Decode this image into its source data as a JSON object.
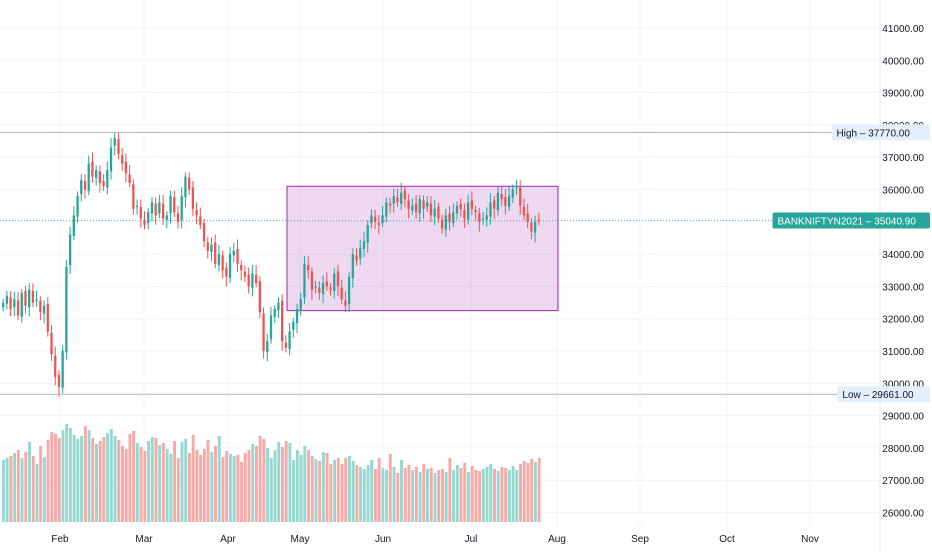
{
  "chart_data": {
    "type": "candlestick",
    "title": "",
    "price_axis": {
      "range": [
        25600,
        41700
      ],
      "ticks": [
        "41000.00",
        "40000.00",
        "39000.00",
        "38000.00",
        "37000.00",
        "36000.00",
        "35000.00",
        "34000.00",
        "33000.00",
        "32000.00",
        "31000.00",
        "30000.00",
        "29000.00",
        "28000.00",
        "27000.00",
        "26000.00"
      ]
    },
    "time_axis": {
      "labels": [
        "Feb",
        "Mar",
        "Apr",
        "May",
        "Jun",
        "Jul",
        "Aug",
        "Sep",
        "Oct",
        "Nov"
      ]
    },
    "price_lines": {
      "high": {
        "label": "High",
        "value": "37770.00",
        "price": 37770
      },
      "low": {
        "label": "Low",
        "value": "29661.00",
        "price": 29661
      },
      "last": {
        "label": "BANKNIFTYN2021",
        "value": "35040.90",
        "price": 35040.9
      }
    },
    "consolidation_box": {
      "date_from": "late Apr",
      "date_to": "end Jul",
      "price_from": 32250,
      "price_to": 36100
    },
    "close_series": [
      32500,
      32700,
      32300,
      32600,
      32100,
      32800,
      32400,
      32900,
      32500,
      32600,
      32200,
      32400,
      31600,
      30900,
      30200,
      29900,
      31000,
      33600,
      34600,
      35200,
      35800,
      36300,
      36000,
      36800,
      36400,
      36600,
      36200,
      36100,
      36600,
      37300,
      37600,
      37100,
      36800,
      36500,
      36200,
      35400,
      35500,
      35100,
      34900,
      35300,
      35600,
      35200,
      35600,
      35100,
      35200,
      35800,
      35300,
      35000,
      35800,
      36400,
      36000,
      35400,
      35200,
      34900,
      34400,
      34100,
      34300,
      33700,
      34000,
      33500,
      33300,
      34000,
      34100,
      33700,
      33500,
      33300,
      33000,
      33400,
      33100,
      32200,
      31000,
      31300,
      32100,
      32300,
      32500,
      31300,
      31100,
      31600,
      31900,
      32300,
      32600,
      33700,
      33500,
      32900,
      33000,
      32800,
      33100,
      33000,
      32900,
      33400,
      33000,
      32600,
      32400,
      33300,
      34000,
      33800,
      34200,
      34400,
      34900,
      35200,
      35000,
      34900,
      35200,
      35600,
      35500,
      35800,
      35600,
      35900,
      35700,
      35400,
      35500,
      35300,
      35700,
      35400,
      35600,
      35200,
      35400,
      35100,
      34800,
      35200,
      35000,
      35300,
      35500,
      35400,
      35100,
      35600,
      35400,
      35300,
      35000,
      35100,
      35200,
      35600,
      35400,
      35900,
      35700,
      35500,
      35800,
      36000,
      36100,
      35500,
      35200,
      35000,
      34700,
      35000,
      35040.9
    ],
    "volume_series": [
      62,
      64,
      66,
      69,
      72,
      64,
      70,
      80,
      66,
      58,
      76,
      65,
      82,
      90,
      88,
      84,
      92,
      98,
      94,
      87,
      83,
      86,
      96,
      92,
      84,
      78,
      81,
      85,
      89,
      93,
      86,
      82,
      76,
      73,
      88,
      91,
      79,
      75,
      71,
      81,
      85,
      84,
      77,
      79,
      73,
      68,
      81,
      64,
      80,
      83,
      69,
      87,
      72,
      67,
      73,
      82,
      70,
      76,
      86,
      65,
      71,
      68,
      66,
      67,
      60,
      69,
      72,
      78,
      76,
      86,
      83,
      74,
      64,
      72,
      80,
      75,
      81,
      79,
      62,
      72,
      67,
      76,
      72,
      66,
      63,
      61,
      70,
      69,
      58,
      62,
      64,
      58,
      64,
      66,
      61,
      57,
      55,
      53,
      57,
      62,
      53,
      64,
      54,
      52,
      68,
      55,
      49,
      62,
      54,
      57,
      52,
      55,
      50,
      58,
      53,
      54,
      49,
      52,
      53,
      50,
      64,
      52,
      57,
      54,
      59,
      50,
      56,
      52,
      51,
      53,
      55,
      58,
      53,
      51,
      55,
      54,
      52,
      56,
      52,
      58,
      61,
      59,
      63,
      60,
      64
    ]
  }
}
